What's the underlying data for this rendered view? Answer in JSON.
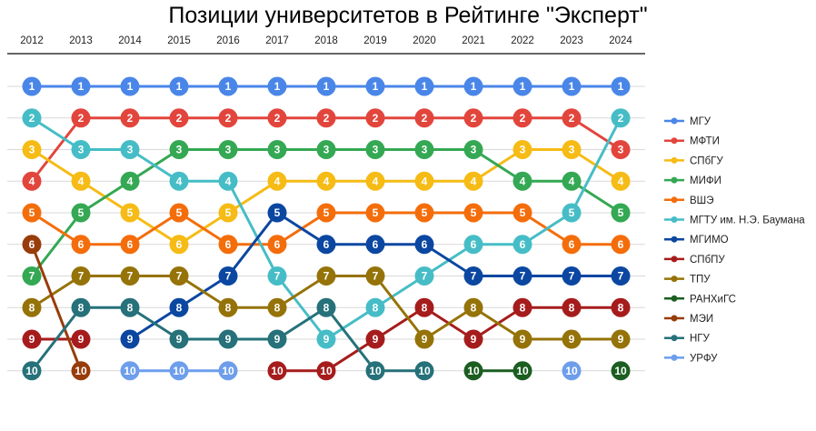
{
  "chart_data": {
    "type": "line",
    "title": "Позиции университетов в Рейтинге \"Эксперт\"",
    "xlabel": "",
    "ylabel": "",
    "x": [
      "2012",
      "2013",
      "2014",
      "2015",
      "2016",
      "2017",
      "2018",
      "2019",
      "2020",
      "2021",
      "2022",
      "2023",
      "2024"
    ],
    "ylim": [
      1,
      10
    ],
    "y_inverted": true,
    "grid": true,
    "legend_position": "right",
    "series": [
      {
        "name": "МГУ",
        "color": "#4a86e8",
        "values": [
          1,
          1,
          1,
          1,
          1,
          1,
          1,
          1,
          1,
          1,
          1,
          1,
          1
        ]
      },
      {
        "name": "МФТИ",
        "color": "#e2453c",
        "values": [
          4,
          2,
          2,
          2,
          2,
          2,
          2,
          2,
          2,
          2,
          2,
          2,
          3
        ]
      },
      {
        "name": "СПбГУ",
        "color": "#f6bb15",
        "values": [
          3,
          4,
          5,
          6,
          5,
          4,
          4,
          4,
          4,
          4,
          3,
          3,
          4
        ]
      },
      {
        "name": "МИФИ",
        "color": "#34a853",
        "values": [
          7,
          5,
          4,
          3,
          3,
          3,
          3,
          3,
          3,
          3,
          4,
          4,
          5
        ]
      },
      {
        "name": "ВШЭ",
        "color": "#f46d0b",
        "values": [
          5,
          6,
          6,
          5,
          6,
          6,
          5,
          5,
          5,
          5,
          5,
          6,
          6
        ]
      },
      {
        "name": "МГТУ им. Н.Э. Баумана",
        "color": "#46bdc6",
        "values": [
          2,
          3,
          3,
          4,
          4,
          7,
          9,
          8,
          7,
          6,
          6,
          5,
          2
        ]
      },
      {
        "name": "МГИМО",
        "color": "#0b47a1",
        "values": [
          null,
          null,
          9,
          8,
          7,
          5,
          6,
          6,
          6,
          7,
          7,
          7,
          7
        ]
      },
      {
        "name": "СПбПУ",
        "color": "#a61c1c",
        "values": [
          9,
          9,
          null,
          null,
          null,
          10,
          10,
          9,
          8,
          9,
          8,
          8,
          8
        ]
      },
      {
        "name": "ТПУ",
        "color": "#957308",
        "values": [
          8,
          7,
          7,
          7,
          8,
          8,
          7,
          7,
          9,
          8,
          9,
          9,
          9
        ]
      },
      {
        "name": "РАНХиГС",
        "color": "#1b5e20",
        "values": [
          null,
          null,
          null,
          null,
          null,
          null,
          null,
          null,
          null,
          10,
          10,
          null,
          10
        ]
      },
      {
        "name": "МЭИ",
        "color": "#983c0a",
        "values": [
          6,
          10,
          null,
          null,
          null,
          null,
          null,
          null,
          null,
          null,
          null,
          null,
          null
        ]
      },
      {
        "name": "НГУ",
        "color": "#26717a",
        "values": [
          10,
          8,
          8,
          9,
          9,
          9,
          8,
          10,
          10,
          null,
          null,
          null,
          null
        ]
      },
      {
        "name": "УРФУ",
        "color": "#6d9eeb",
        "values": [
          null,
          null,
          10,
          10,
          10,
          null,
          null,
          null,
          null,
          null,
          null,
          10,
          null
        ]
      }
    ]
  }
}
